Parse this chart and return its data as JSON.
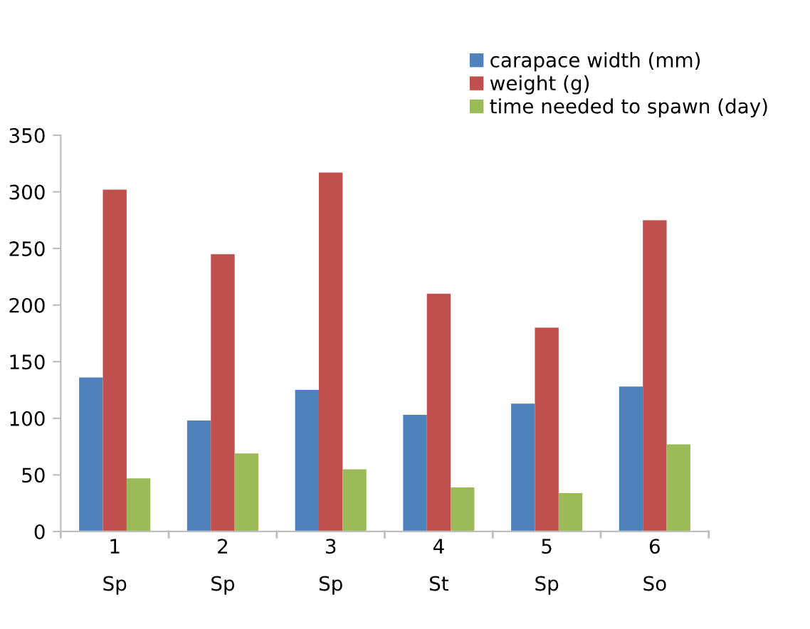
{
  "chart_data": {
    "type": "bar",
    "categories": [
      "1\nSp",
      "2\nSp",
      "3\nSp",
      "4\nSt",
      "5\nSp",
      "6\nSo"
    ],
    "series": [
      {
        "name": "carapace width (mm)",
        "color": "#4f81bd",
        "values": [
          136,
          98,
          125,
          103,
          113,
          128
        ]
      },
      {
        "name": "weight (g)",
        "color": "#c0504d",
        "values": [
          302,
          245,
          317,
          210,
          180,
          275
        ]
      },
      {
        "name": "time needed to spawn (day)",
        "color": "#9bbb59",
        "values": [
          47,
          69,
          55,
          39,
          34,
          77
        ]
      }
    ],
    "ylim": [
      0,
      350
    ],
    "yticks": [
      0,
      50,
      100,
      150,
      200,
      250,
      300,
      350
    ],
    "grid": false,
    "legend": "top right"
  }
}
